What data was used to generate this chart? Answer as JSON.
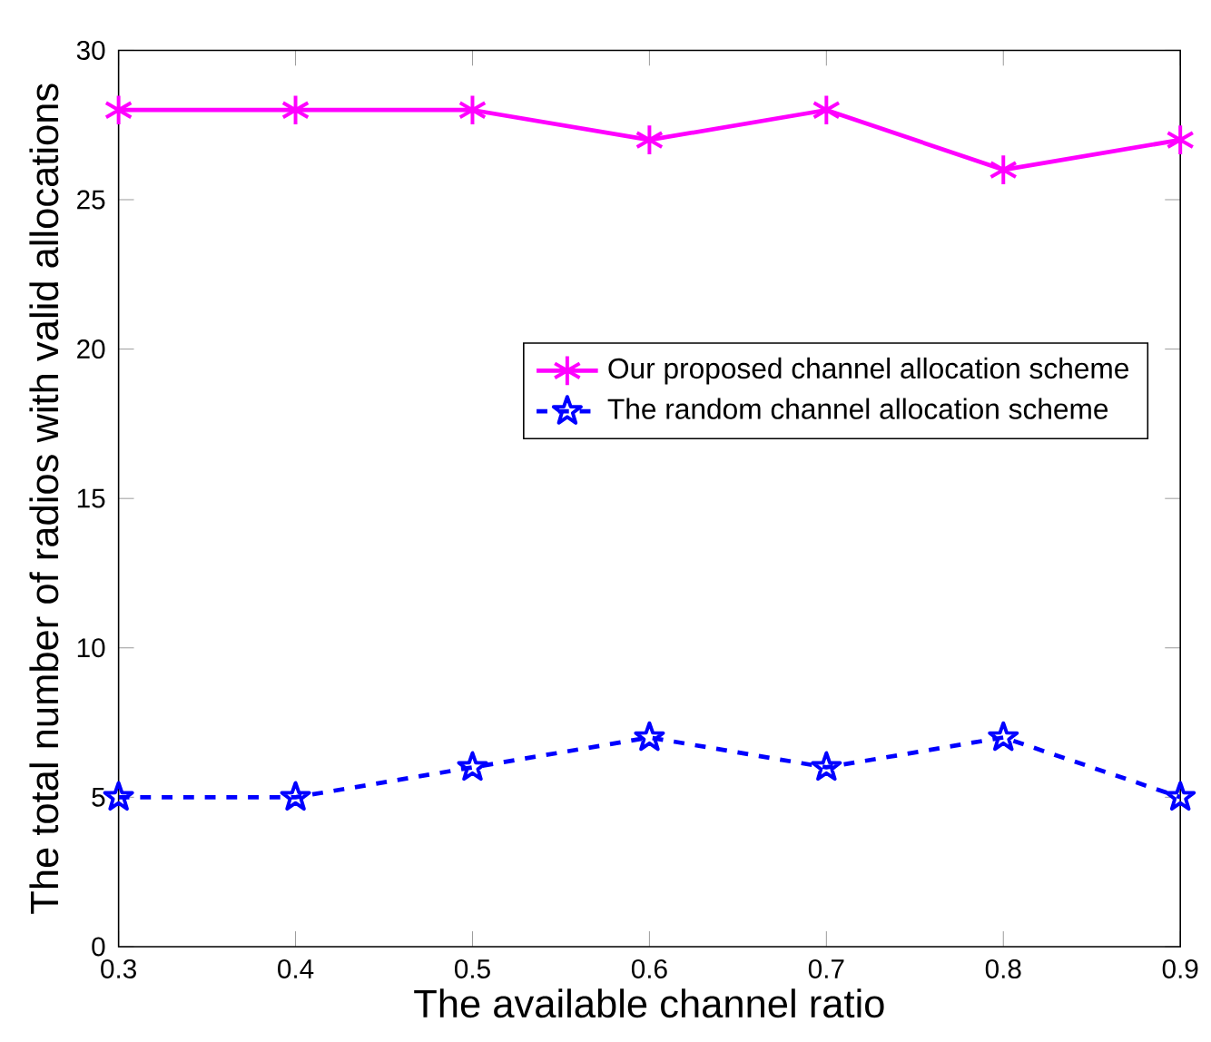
{
  "chart_data": {
    "type": "line",
    "xlabel": "The available channel ratio",
    "ylabel": "The total number of radios with valid allocations",
    "x": [
      0.3,
      0.4,
      0.5,
      0.6,
      0.7,
      0.8,
      0.9
    ],
    "series": [
      {
        "name": "Our proposed channel allocation scheme",
        "color": "#ff00ff",
        "values": [
          28,
          28,
          28,
          27,
          28,
          26,
          27
        ],
        "marker": "cross",
        "line_style": "solid"
      },
      {
        "name": "The random channel allocation scheme",
        "color": "#0000ff",
        "values": [
          5,
          5,
          6,
          7,
          6,
          7,
          5
        ],
        "marker": "star",
        "line_style": "dashed"
      }
    ],
    "xlim": [
      0.3,
      0.9
    ],
    "xticks": [
      0.3,
      0.4,
      0.5,
      0.6,
      0.7,
      0.8,
      0.9
    ],
    "ylim": [
      0,
      30
    ],
    "yticks": [
      0,
      5,
      10,
      15,
      20,
      25,
      30
    ],
    "grid": false,
    "legend": "right"
  }
}
